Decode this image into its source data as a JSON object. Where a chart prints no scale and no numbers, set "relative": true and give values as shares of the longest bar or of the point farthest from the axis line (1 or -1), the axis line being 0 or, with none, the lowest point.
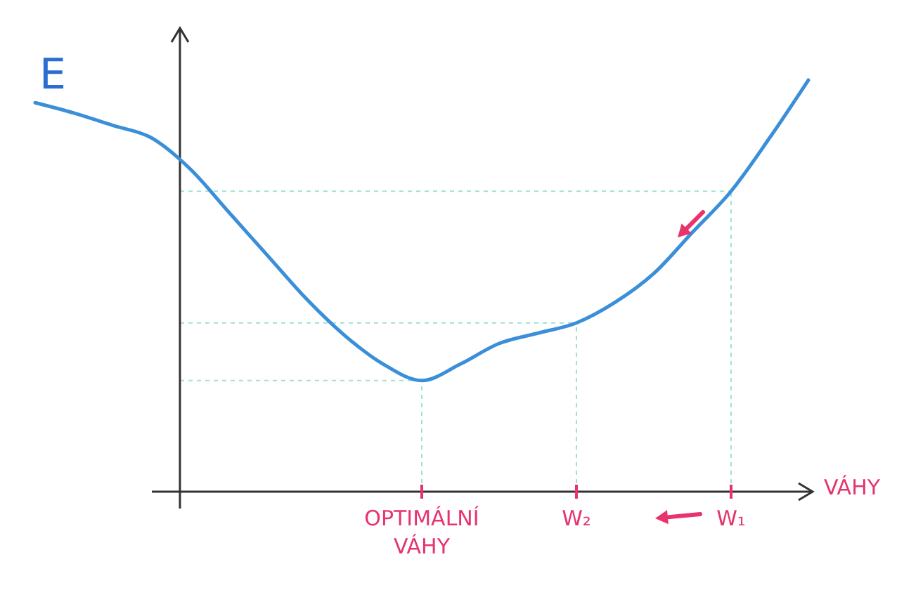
{
  "chart_data": {
    "type": "line",
    "relative": true,
    "xlabel": "VÁHY",
    "ylabel": "E",
    "categories": [
      null,
      null,
      null,
      null,
      null,
      null,
      null,
      null,
      null,
      null,
      "OPTIMÁLNÍ VÁHY",
      null,
      null,
      null,
      "W₂",
      null,
      null,
      null,
      "W₁",
      null,
      null
    ],
    "ref_lines": [
      {
        "axis": "x",
        "value": "OPTIMÁLNÍ VÁHY",
        "color": "#9fe0d8",
        "line_style": "dotted"
      },
      {
        "axis": "x",
        "value": "W₂",
        "color": "#9fe0d8",
        "line_style": "dotted"
      },
      {
        "axis": "x",
        "value": "W₁",
        "color": "#9fe0d8",
        "line_style": "dotted"
      },
      {
        "axis": "y",
        "value": 0.27,
        "color": "#9fe0d8",
        "line_style": "dotted"
      },
      {
        "axis": "y",
        "value": 0.41,
        "color": "#9fe0d8",
        "line_style": "dotted"
      },
      {
        "axis": "y",
        "value": 0.73,
        "color": "#9fe0d8",
        "line_style": "dotted"
      }
    ],
    "series": [
      {
        "color": "#3a8fd8",
        "values": [
          0.945,
          0.92,
          0.89,
          0.86,
          0.785,
          0.68,
          0.575,
          0.47,
          0.38,
          0.31,
          0.27,
          0.31,
          0.36,
          0.385,
          0.41,
          0.46,
          0.53,
          0.63,
          0.73,
          0.86,
          1
        ]
      }
    ]
  }
}
